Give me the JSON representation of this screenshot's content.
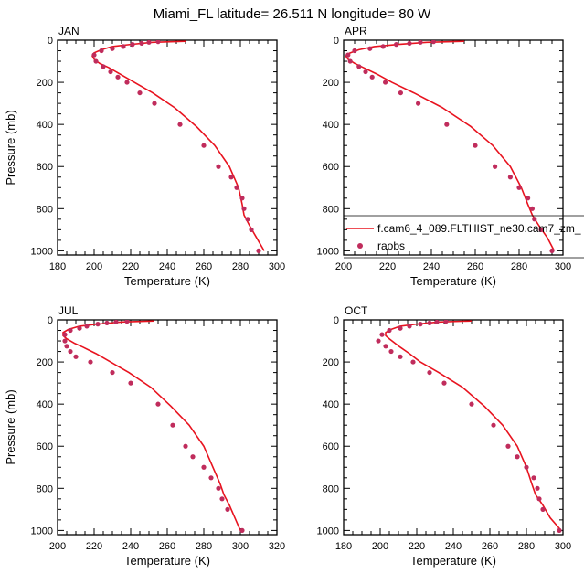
{
  "figure": {
    "title": "Miami_FL  latitude= 26.511 N longitude= 80 W"
  },
  "colors": {
    "model_line": "#e8131f",
    "raobs_marker": "#c02c5c",
    "axis": "#000000"
  },
  "chart_data": [
    {
      "type": "line",
      "panel": "JAN",
      "title": "JAN",
      "xlabel": "Temperature (K)",
      "ylabel": "Pressure (mb)",
      "xlim": [
        180,
        300
      ],
      "ylim": [
        0,
        1020
      ],
      "y_inverted": true,
      "xticks": [
        180,
        200,
        220,
        240,
        260,
        280,
        300
      ],
      "yticks": [
        0,
        200,
        400,
        600,
        800,
        1000
      ],
      "legend": null,
      "series": [
        {
          "name": "f.cam6_4_089.FLTHIST_ne30.cam7_zm_",
          "kind": "line",
          "temperature": [
            250,
            232,
            220,
            210,
            204,
            200,
            199,
            200,
            203,
            208,
            214,
            222,
            232,
            244,
            256,
            266,
            274,
            279,
            281,
            282,
            285,
            289,
            293
          ],
          "pressure": [
            5,
            10,
            20,
            30,
            45,
            60,
            75,
            90,
            110,
            130,
            160,
            200,
            250,
            320,
            410,
            500,
            600,
            700,
            780,
            830,
            880,
            940,
            1000
          ]
        },
        {
          "name": "raobs",
          "kind": "marker",
          "temperature": [
            235,
            230,
            226,
            221,
            216,
            210,
            204,
            200,
            201,
            205,
            209,
            213,
            218,
            225,
            233,
            247,
            260,
            268,
            275,
            278,
            281,
            282,
            284,
            286,
            290
          ],
          "pressure": [
            7,
            10,
            15,
            20,
            30,
            40,
            50,
            70,
            100,
            125,
            150,
            175,
            200,
            250,
            300,
            400,
            500,
            600,
            650,
            700,
            750,
            800,
            850,
            900,
            1000
          ]
        }
      ]
    },
    {
      "type": "line",
      "panel": "APR",
      "title": "APR",
      "xlabel": "Temperature (K)",
      "ylabel": "",
      "xlim": [
        200,
        300
      ],
      "ylim": [
        0,
        1020
      ],
      "y_inverted": true,
      "xticks": [
        200,
        220,
        240,
        260,
        280,
        300
      ],
      "yticks": [
        0,
        200,
        400,
        600,
        800,
        1000
      ],
      "legend": {
        "location": "bottom-right",
        "entries": [
          "f.cam6_4_089.FLTHIST_ne30.cam7_zm_",
          "raobs"
        ]
      },
      "series": [
        {
          "name": "f.cam6_4_089.FLTHIST_ne30.cam7_zm_",
          "kind": "line",
          "temperature": [
            255,
            238,
            225,
            214,
            207,
            203,
            201,
            202,
            205,
            209,
            215,
            222,
            232,
            245,
            258,
            268,
            276,
            281,
            284,
            286,
            289,
            293,
            296
          ],
          "pressure": [
            5,
            10,
            20,
            30,
            45,
            60,
            75,
            90,
            110,
            130,
            160,
            200,
            250,
            320,
            410,
            500,
            600,
            700,
            780,
            830,
            880,
            940,
            1000
          ]
        },
        {
          "name": "raobs",
          "kind": "marker",
          "temperature": [
            241,
            235,
            230,
            224,
            218,
            212,
            205,
            202,
            203,
            207,
            210,
            213,
            219,
            226,
            234,
            247,
            260,
            269,
            276,
            280,
            284,
            286,
            287,
            290,
            295
          ],
          "pressure": [
            7,
            10,
            15,
            20,
            30,
            40,
            50,
            70,
            100,
            125,
            150,
            175,
            200,
            250,
            300,
            400,
            500,
            600,
            650,
            700,
            750,
            800,
            850,
            900,
            1000
          ]
        }
      ]
    },
    {
      "type": "line",
      "panel": "JUL",
      "title": "JUL",
      "xlabel": "Temperature (K)",
      "ylabel": "Pressure (mb)",
      "xlim": [
        200,
        320
      ],
      "ylim": [
        0,
        1020
      ],
      "y_inverted": true,
      "xticks": [
        200,
        220,
        240,
        260,
        280,
        300,
        320
      ],
      "yticks": [
        0,
        200,
        400,
        600,
        800,
        1000
      ],
      "legend": null,
      "series": [
        {
          "name": "f.cam6_4_089.FLTHIST_ne30.cam7_zm_",
          "kind": "line",
          "temperature": [
            253,
            235,
            222,
            212,
            206,
            203,
            203,
            205,
            209,
            214,
            221,
            229,
            239,
            251,
            262,
            272,
            280,
            285,
            289,
            291,
            294,
            297,
            300
          ],
          "pressure": [
            5,
            10,
            20,
            30,
            45,
            60,
            75,
            90,
            110,
            130,
            160,
            200,
            250,
            320,
            410,
            500,
            600,
            700,
            780,
            830,
            880,
            940,
            1000
          ]
        },
        {
          "name": "raobs",
          "kind": "marker",
          "temperature": [
            238,
            232,
            227,
            222,
            216,
            212,
            207,
            204,
            204,
            205,
            207,
            210,
            218,
            230,
            240,
            255,
            263,
            270,
            274,
            280,
            284,
            288,
            290,
            293,
            301
          ],
          "pressure": [
            7,
            10,
            15,
            20,
            30,
            40,
            50,
            70,
            100,
            125,
            150,
            175,
            200,
            250,
            300,
            400,
            500,
            600,
            650,
            700,
            750,
            800,
            850,
            900,
            1000
          ]
        }
      ]
    },
    {
      "type": "line",
      "panel": "OCT",
      "title": "OCT",
      "xlabel": "Temperature (K)",
      "ylabel": "",
      "xlim": [
        180,
        300
      ],
      "ylim": [
        0,
        1020
      ],
      "y_inverted": true,
      "xticks": [
        180,
        200,
        220,
        240,
        260,
        280,
        300
      ],
      "yticks": [
        0,
        200,
        400,
        600,
        800,
        1000
      ],
      "legend": null,
      "series": [
        {
          "name": "f.cam6_4_089.FLTHIST_ne30.cam7_zm_",
          "kind": "line",
          "temperature": [
            250,
            232,
            220,
            211,
            206,
            203,
            203,
            205,
            208,
            211,
            216,
            222,
            232,
            245,
            257,
            267,
            275,
            280,
            283,
            285,
            289,
            293,
            299
          ],
          "pressure": [
            5,
            10,
            20,
            30,
            45,
            60,
            75,
            90,
            110,
            130,
            160,
            200,
            250,
            320,
            410,
            500,
            600,
            700,
            780,
            830,
            880,
            940,
            1000
          ]
        },
        {
          "name": "raobs",
          "kind": "marker",
          "temperature": [
            236,
            231,
            227,
            222,
            216,
            211,
            205,
            201,
            199,
            203,
            206,
            211,
            218,
            227,
            235,
            250,
            262,
            270,
            275,
            280,
            284,
            286,
            287,
            289,
            298
          ],
          "pressure": [
            7,
            10,
            15,
            20,
            30,
            40,
            50,
            70,
            100,
            125,
            150,
            175,
            200,
            250,
            300,
            400,
            500,
            600,
            650,
            700,
            750,
            800,
            850,
            900,
            1000
          ]
        }
      ]
    }
  ]
}
